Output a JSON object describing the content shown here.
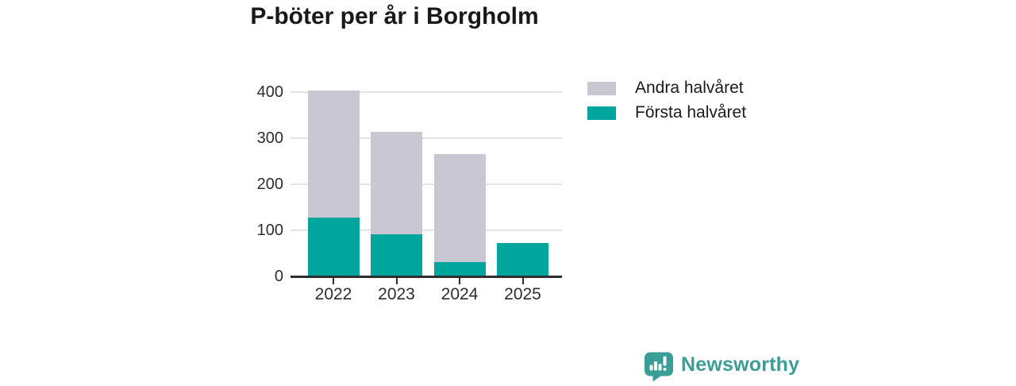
{
  "chart_data": {
    "type": "bar",
    "stacked": true,
    "title": "P-böter per år i Borgholm",
    "categories": [
      "2022",
      "2023",
      "2024",
      "2025"
    ],
    "series": [
      {
        "name": "Första halvåret",
        "color": "#00a69c",
        "values": [
          125,
          90,
          30,
          70
        ]
      },
      {
        "name": "Andra halvåret",
        "color": "#c9c7d1",
        "values": [
          275,
          222,
          235,
          0
        ]
      }
    ],
    "xlabel": "",
    "ylabel": "",
    "ylim": [
      0,
      400
    ],
    "yticks": [
      0,
      100,
      200,
      300,
      400
    ],
    "grid": true,
    "legend_position": "right-top"
  },
  "branding": {
    "logo_text": "Newsworthy",
    "logo_color": "#3b9e96"
  },
  "colors": {
    "title": "#191919",
    "axis": "#2e2e2e",
    "axis_label": "#2d2d2d",
    "gridline": "#e4e3e8",
    "background": "#ffffff"
  }
}
